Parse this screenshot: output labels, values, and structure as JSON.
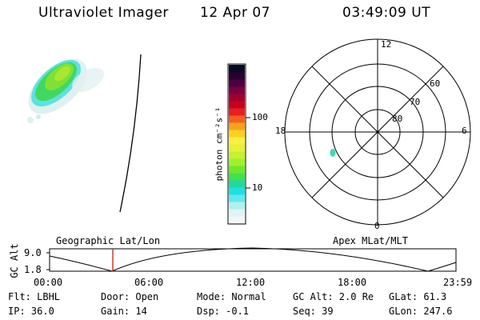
{
  "header": {
    "instrument": "Ultraviolet Imager",
    "date": "12 Apr 07",
    "time": "03:49:09 UT"
  },
  "colorbar": {
    "label": "photon cm⁻²s⁻¹",
    "ticks": [
      "100",
      "10"
    ],
    "colors": [
      "#0a0a28",
      "#2a0030",
      "#4b0040",
      "#7a0040",
      "#a00030",
      "#c80020",
      "#e8201c",
      "#f26022",
      "#f8a01c",
      "#fbd020",
      "#f8f040",
      "#e8f038",
      "#c8f030",
      "#9ef030",
      "#70e828",
      "#40e050",
      "#20d8a0",
      "#20e0e0",
      "#60e8f0",
      "#b0f0f0",
      "#e0f4f4",
      "#f2f6f6"
    ]
  },
  "polar": {
    "mlt_labels": {
      "top": "12",
      "left": "18",
      "right": "6",
      "bottom": "0"
    },
    "lat_labels": [
      "60",
      "70",
      "80"
    ]
  },
  "timeline": {
    "ylabel": "GC Alt",
    "ymax": "9.0",
    "ymin": "1.8",
    "left_title": "Geographic Lat/Lon",
    "right_title": "Apex MLat/MLT",
    "xticks": [
      "00:00",
      "06:00",
      "12:00",
      "18:00",
      "23:59"
    ],
    "marker_color": "#c02010"
  },
  "status": {
    "flt": "Flt: LBHL",
    "ip": "IP: 36.0",
    "door": "Door: Open",
    "gain": "Gain: 14",
    "mode": "Mode: Normal",
    "dsp": "Dsp:   -0.1",
    "gcalt": "GC Alt: 2.0 Re",
    "seq": "Seq: 39",
    "glat": "GLat:  61.3",
    "glon": "GLon: 247.6"
  }
}
